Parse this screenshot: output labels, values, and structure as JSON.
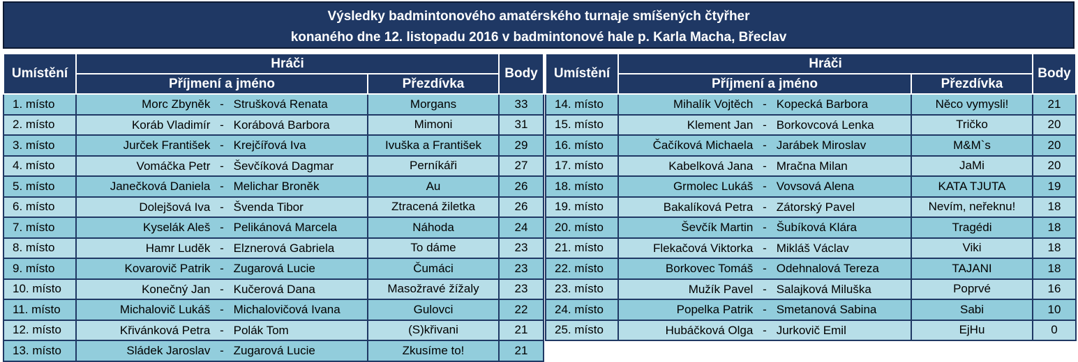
{
  "title": {
    "line1": "Výsledky badmintonového amatérského turnaje smíšených čtyřher",
    "line2": "konaného dne 12. listopadu 2016 v badmintonové hale p. Karla Macha, Břeclav"
  },
  "headers": {
    "place": "Umístění",
    "players": "Hráči",
    "names": "Příjmení a jméno",
    "nickname": "Přezdívka",
    "points": "Body"
  },
  "left_rows": [
    {
      "place": "1. místo",
      "p1": "Morc Zbyněk",
      "sep": "-",
      "p2": "Strušková Renata",
      "nick": "Morgans",
      "pts": "33"
    },
    {
      "place": "2. místo",
      "p1": "Koráb Vladimír",
      "sep": "-",
      "p2": "Korábová Barbora",
      "nick": "Mimoni",
      "pts": "31"
    },
    {
      "place": "3. místo",
      "p1": "Jurček František",
      "sep": "-",
      "p2": "Krejčířová Iva",
      "nick": "Ivuška a František",
      "pts": "29"
    },
    {
      "place": "4. místo",
      "p1": "Vomáčka Petr",
      "sep": "-",
      "p2": "Ševčíková Dagmar",
      "nick": "Perníkáři",
      "pts": "27"
    },
    {
      "place": "5. místo",
      "p1": "Janečková Daniela",
      "sep": "-",
      "p2": "Melichar Broněk",
      "nick": "Au",
      "pts": "26"
    },
    {
      "place": "6. místo",
      "p1": "Dolejšová Iva",
      "sep": "-",
      "p2": "Švenda Tibor",
      "nick": "Ztracená žiletka",
      "pts": "26"
    },
    {
      "place": "7. místo",
      "p1": "Kyselák Aleš",
      "sep": "-",
      "p2": "Pelikánová Marcela",
      "nick": "Náhoda",
      "pts": "24"
    },
    {
      "place": "8. místo",
      "p1": "Hamr Luděk",
      "sep": "-",
      "p2": "Elznerová Gabriela",
      "nick": "To dáme",
      "pts": "23"
    },
    {
      "place": "9. místo",
      "p1": "Kovarovič Patrik",
      "sep": "-",
      "p2": "Zugarová Lucie",
      "nick": "Čumáci",
      "pts": "23"
    },
    {
      "place": "10. místo",
      "p1": "Konečný Jan",
      "sep": "-",
      "p2": "Kučerová Dana",
      "nick": "Masožravé žížaly",
      "pts": "23"
    },
    {
      "place": "11. místo",
      "p1": "Michalovič Lukáš",
      "sep": "-",
      "p2": "Michalovičová Ivana",
      "nick": "Gulovci",
      "pts": "22"
    },
    {
      "place": "12. místo",
      "p1": "Křivánková Petra",
      "sep": "-",
      "p2": "Polák Tom",
      "nick": "(S)křivani",
      "pts": "21"
    },
    {
      "place": "13. místo",
      "p1": "Sládek Jaroslav",
      "sep": "-",
      "p2": "Zugarová Lucie",
      "nick": "Zkusíme to!",
      "pts": "21"
    }
  ],
  "right_rows": [
    {
      "place": "14. místo",
      "p1": "Mihalík Vojtěch",
      "sep": "-",
      "p2": "Kopecká Barbora",
      "nick": "Něco vymysli!",
      "pts": "21"
    },
    {
      "place": "15. místo",
      "p1": "Klement Jan",
      "sep": "-",
      "p2": "Borkovcová Lenka",
      "nick": "Tričko",
      "pts": "20"
    },
    {
      "place": "16. místo",
      "p1": "Čačíková Michaela",
      "sep": "-",
      "p2": "Jarábek Miroslav",
      "nick": "M&M`s",
      "pts": "20"
    },
    {
      "place": "17. místo",
      "p1": "Kabelková Jana",
      "sep": "-",
      "p2": "Mračna Milan",
      "nick": "JaMi",
      "pts": "20"
    },
    {
      "place": "18. místo",
      "p1": "Grmolec Lukáš",
      "sep": "-",
      "p2": "Vovsová Alena",
      "nick": "KATA TJUTA",
      "pts": "19"
    },
    {
      "place": "19. místo",
      "p1": "Bakalíková Petra",
      "sep": "-",
      "p2": "Zátorský Pavel",
      "nick": "Nevím, neřeknu!",
      "pts": "18"
    },
    {
      "place": "20. místo",
      "p1": "Ševčík Martin",
      "sep": "-",
      "p2": "Šubíková Klára",
      "nick": "Tragédi",
      "pts": "18"
    },
    {
      "place": "21. místo",
      "p1": "Flekačová Viktorka",
      "sep": "-",
      "p2": "Mikláš Václav",
      "nick": "Viki",
      "pts": "18"
    },
    {
      "place": "22. místo",
      "p1": "Borkovec Tomáš",
      "sep": "-",
      "p2": "Odehnalová Tereza",
      "nick": "TAJANI",
      "pts": "18"
    },
    {
      "place": "23. místo",
      "p1": "Mužík Pavel",
      "sep": "-",
      "p2": "Salajková Miluška",
      "nick": "Poprvé",
      "pts": "16"
    },
    {
      "place": "24. místo",
      "p1": "Popelka Patrik",
      "sep": "-",
      "p2": "Smetanová Sabina",
      "nick": "Sabi",
      "pts": "10"
    },
    {
      "place": "25. místo",
      "p1": "Hubáčková  Olga",
      "sep": "-",
      "p2": "Jurkovič Emil",
      "nick": "EjHu",
      "pts": "0"
    }
  ]
}
